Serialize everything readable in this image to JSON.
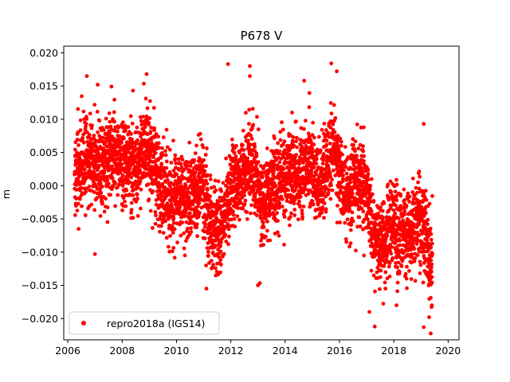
{
  "chart_data": {
    "type": "scatter",
    "title": "P678 V",
    "xlabel": "",
    "ylabel": "m",
    "xlim": [
      2005.85,
      2020.4
    ],
    "ylim": [
      -0.0232,
      0.021
    ],
    "x_ticks": [
      2006,
      2008,
      2010,
      2012,
      2014,
      2016,
      2018,
      2020
    ],
    "x_tick_labels": [
      "2006",
      "2008",
      "2010",
      "2012",
      "2014",
      "2016",
      "2018",
      "2020"
    ],
    "y_ticks": [
      0.02,
      0.015,
      0.01,
      0.005,
      0.0,
      -0.005,
      -0.01,
      -0.015,
      -0.02
    ],
    "y_tick_labels": [
      "0.020",
      "0.015",
      "0.010",
      "0.005",
      "0.000",
      "−0.005",
      "−0.010",
      "−0.015",
      "−0.020"
    ],
    "grid": false,
    "legend": {
      "placement": "lower-left"
    },
    "series": [
      {
        "name": "repro2018a (IGS14)",
        "color": "#ff0000",
        "marker": "circle",
        "trend": [
          [
            2006.3,
            0.002
          ],
          [
            2006.8,
            0.0045
          ],
          [
            2007.2,
            0.003
          ],
          [
            2007.6,
            0.005
          ],
          [
            2008.0,
            0.0035
          ],
          [
            2008.5,
            0.0025
          ],
          [
            2008.9,
            0.006
          ],
          [
            2009.3,
            0.001
          ],
          [
            2009.7,
            -0.003
          ],
          [
            2010.1,
            -0.0015
          ],
          [
            2010.5,
            -0.002
          ],
          [
            2010.9,
            0.001
          ],
          [
            2011.2,
            -0.005
          ],
          [
            2011.6,
            -0.007
          ],
          [
            2012.0,
            -0.0005
          ],
          [
            2012.4,
            0.001
          ],
          [
            2012.8,
            0.004
          ],
          [
            2013.2,
            -0.003
          ],
          [
            2013.6,
            0.0005
          ],
          [
            2014.0,
            0.002
          ],
          [
            2014.5,
            0.001
          ],
          [
            2014.9,
            0.0035
          ],
          [
            2015.3,
            -0.001
          ],
          [
            2015.8,
            0.006
          ],
          [
            2016.2,
            -0.002
          ],
          [
            2016.6,
            0.001
          ],
          [
            2017.0,
            0.0
          ],
          [
            2017.3,
            -0.009
          ],
          [
            2017.7,
            -0.008
          ],
          [
            2018.0,
            -0.006
          ],
          [
            2018.3,
            -0.008
          ],
          [
            2018.6,
            -0.007
          ],
          [
            2018.9,
            -0.005
          ],
          [
            2019.2,
            -0.008
          ],
          [
            2019.4,
            -0.012
          ]
        ],
        "spread": 0.0042,
        "x_range": [
          2006.25,
          2019.42
        ],
        "n_points": 4200,
        "outliers": [
          [
            2006.7,
            0.0165
          ],
          [
            2007.1,
            0.0152
          ],
          [
            2008.4,
            0.0143
          ],
          [
            2008.9,
            0.0168
          ],
          [
            2011.9,
            0.0183
          ],
          [
            2012.7,
            0.018
          ],
          [
            2012.7,
            0.0165
          ],
          [
            2014.7,
            0.0158
          ],
          [
            2015.7,
            0.0184
          ],
          [
            2015.9,
            0.0172
          ],
          [
            2019.1,
            0.0093
          ],
          [
            2006.4,
            -0.0065
          ],
          [
            2007.0,
            -0.0103
          ],
          [
            2011.1,
            -0.0155
          ],
          [
            2013.0,
            -0.015
          ],
          [
            2016.9,
            -0.0105
          ],
          [
            2017.1,
            -0.019
          ],
          [
            2017.3,
            -0.0212
          ],
          [
            2018.1,
            -0.018
          ],
          [
            2019.1,
            -0.0213
          ],
          [
            2019.3,
            -0.0198
          ],
          [
            2019.4,
            -0.018
          ]
        ]
      }
    ]
  }
}
